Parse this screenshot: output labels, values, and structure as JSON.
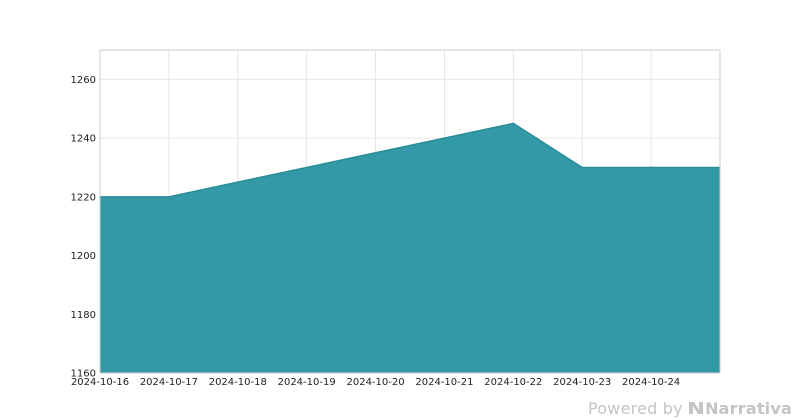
{
  "chart_data": {
    "type": "area",
    "title": "",
    "xlabel": "",
    "ylabel": "",
    "x": [
      "2024-10-16",
      "2024-10-17",
      "2024-10-18",
      "2024-10-19",
      "2024-10-20",
      "2024-10-21",
      "2024-10-22",
      "2024-10-23",
      "2024-10-24",
      "2024-10-25"
    ],
    "series": [
      {
        "values": [
          1220,
          1220,
          1225,
          1230,
          1235,
          1240,
          1245,
          1230,
          1230,
          1230
        ]
      }
    ],
    "x_tick_labels": [
      "2024-10-16",
      "2024-10-17",
      "2024-10-18",
      "2024-10-19",
      "2024-10-20",
      "2024-10-21",
      "2024-10-22",
      "2024-10-23",
      "2024-10-24"
    ],
    "y_ticks": [
      1160,
      1180,
      1200,
      1220,
      1240,
      1260
    ],
    "ylim": [
      1160,
      1270
    ],
    "grid": true,
    "legend": "none",
    "colors": {
      "fill": "#3399a6",
      "line": "#2a8c99",
      "grid": "#e6e6e6",
      "frame": "#cccccc"
    }
  },
  "watermark": {
    "prefix": "Powered by",
    "brand": "Narrativa",
    "icon": "narrativa-logo-icon"
  }
}
